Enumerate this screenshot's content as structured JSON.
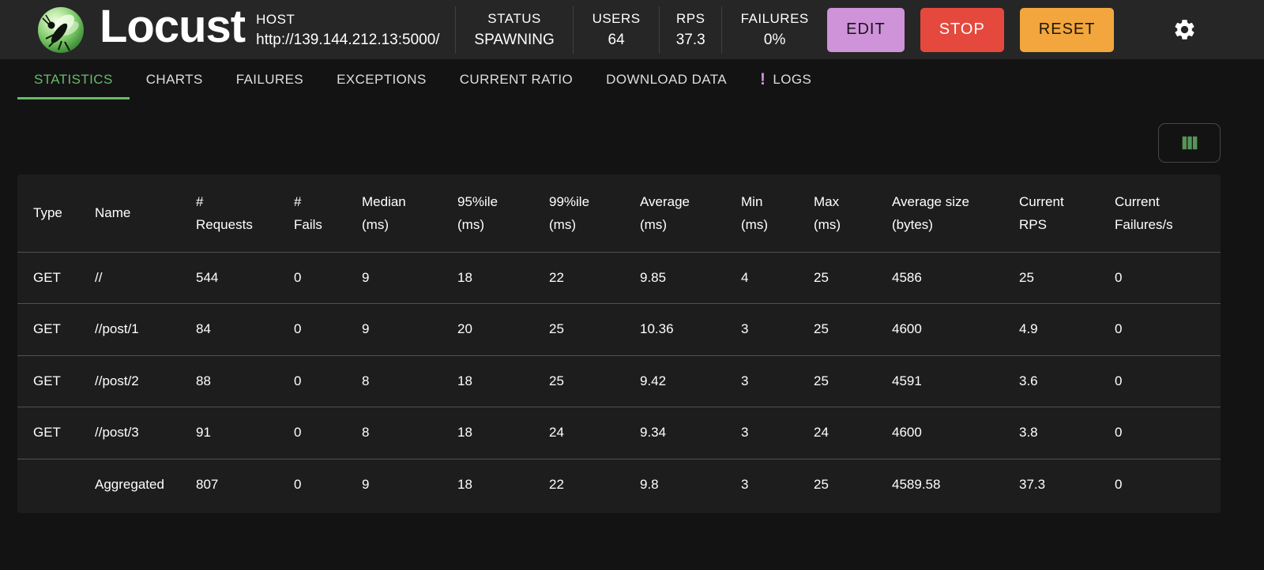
{
  "colors": {
    "accent_green": "#66bb6a",
    "edit_purple": "#ce93d8",
    "stop_red": "#e5493d",
    "reset_orange": "#f2a63d"
  },
  "header": {
    "app_name": "Locust",
    "host": {
      "label": "HOST",
      "value": "http://139.144.212.13:5000/"
    },
    "stats": [
      {
        "label": "STATUS",
        "value": "SPAWNING"
      },
      {
        "label": "USERS",
        "value": "64"
      },
      {
        "label": "RPS",
        "value": "37.3"
      },
      {
        "label": "FAILURES",
        "value": "0%"
      }
    ],
    "buttons": {
      "edit": "EDIT",
      "stop": "STOP",
      "reset": "RESET"
    },
    "gear_icon": "gear-icon"
  },
  "tabs": {
    "active": "STATISTICS",
    "logs_badge": "!",
    "items": [
      {
        "label": "STATISTICS"
      },
      {
        "label": "CHARTS"
      },
      {
        "label": "FAILURES"
      },
      {
        "label": "EXCEPTIONS"
      },
      {
        "label": "CURRENT RATIO"
      },
      {
        "label": "DOWNLOAD DATA"
      },
      {
        "label": "LOGS"
      }
    ]
  },
  "toolbar": {
    "columns_button_icon": "view-columns-icon"
  },
  "table": {
    "columns": [
      {
        "key": "type",
        "line1": "Type",
        "line2": ""
      },
      {
        "key": "name",
        "line1": "Name",
        "line2": ""
      },
      {
        "key": "requests",
        "line1": "#",
        "line2": "Requests"
      },
      {
        "key": "fails",
        "line1": "#",
        "line2": "Fails"
      },
      {
        "key": "median",
        "line1": "Median",
        "line2": "(ms)"
      },
      {
        "key": "p95",
        "line1": "95%ile",
        "line2": "(ms)"
      },
      {
        "key": "p99",
        "line1": "99%ile",
        "line2": "(ms)"
      },
      {
        "key": "average",
        "line1": "Average",
        "line2": "(ms)"
      },
      {
        "key": "min",
        "line1": "Min",
        "line2": "(ms)"
      },
      {
        "key": "max",
        "line1": "Max",
        "line2": "(ms)"
      },
      {
        "key": "average-size",
        "line1": "Average size",
        "line2": "(bytes)"
      },
      {
        "key": "current-rps",
        "line1": "Current",
        "line2": "RPS"
      },
      {
        "key": "current-failures",
        "line1": "Current",
        "line2": "Failures/s"
      }
    ],
    "rows": [
      {
        "cells": [
          "GET",
          "//",
          "544",
          "0",
          "9",
          "18",
          "22",
          "9.85",
          "4",
          "25",
          "4586",
          "25",
          "0"
        ]
      },
      {
        "cells": [
          "GET",
          "//post/1",
          "84",
          "0",
          "9",
          "20",
          "25",
          "10.36",
          "3",
          "25",
          "4600",
          "4.9",
          "0"
        ]
      },
      {
        "cells": [
          "GET",
          "//post/2",
          "88",
          "0",
          "8",
          "18",
          "25",
          "9.42",
          "3",
          "25",
          "4591",
          "3.6",
          "0"
        ]
      },
      {
        "cells": [
          "GET",
          "//post/3",
          "91",
          "0",
          "8",
          "18",
          "24",
          "9.34",
          "3",
          "24",
          "4600",
          "3.8",
          "0"
        ]
      },
      {
        "cells": [
          "",
          "Aggregated",
          "807",
          "0",
          "9",
          "18",
          "22",
          "9.8",
          "3",
          "25",
          "4589.58",
          "37.3",
          "0"
        ]
      }
    ]
  }
}
